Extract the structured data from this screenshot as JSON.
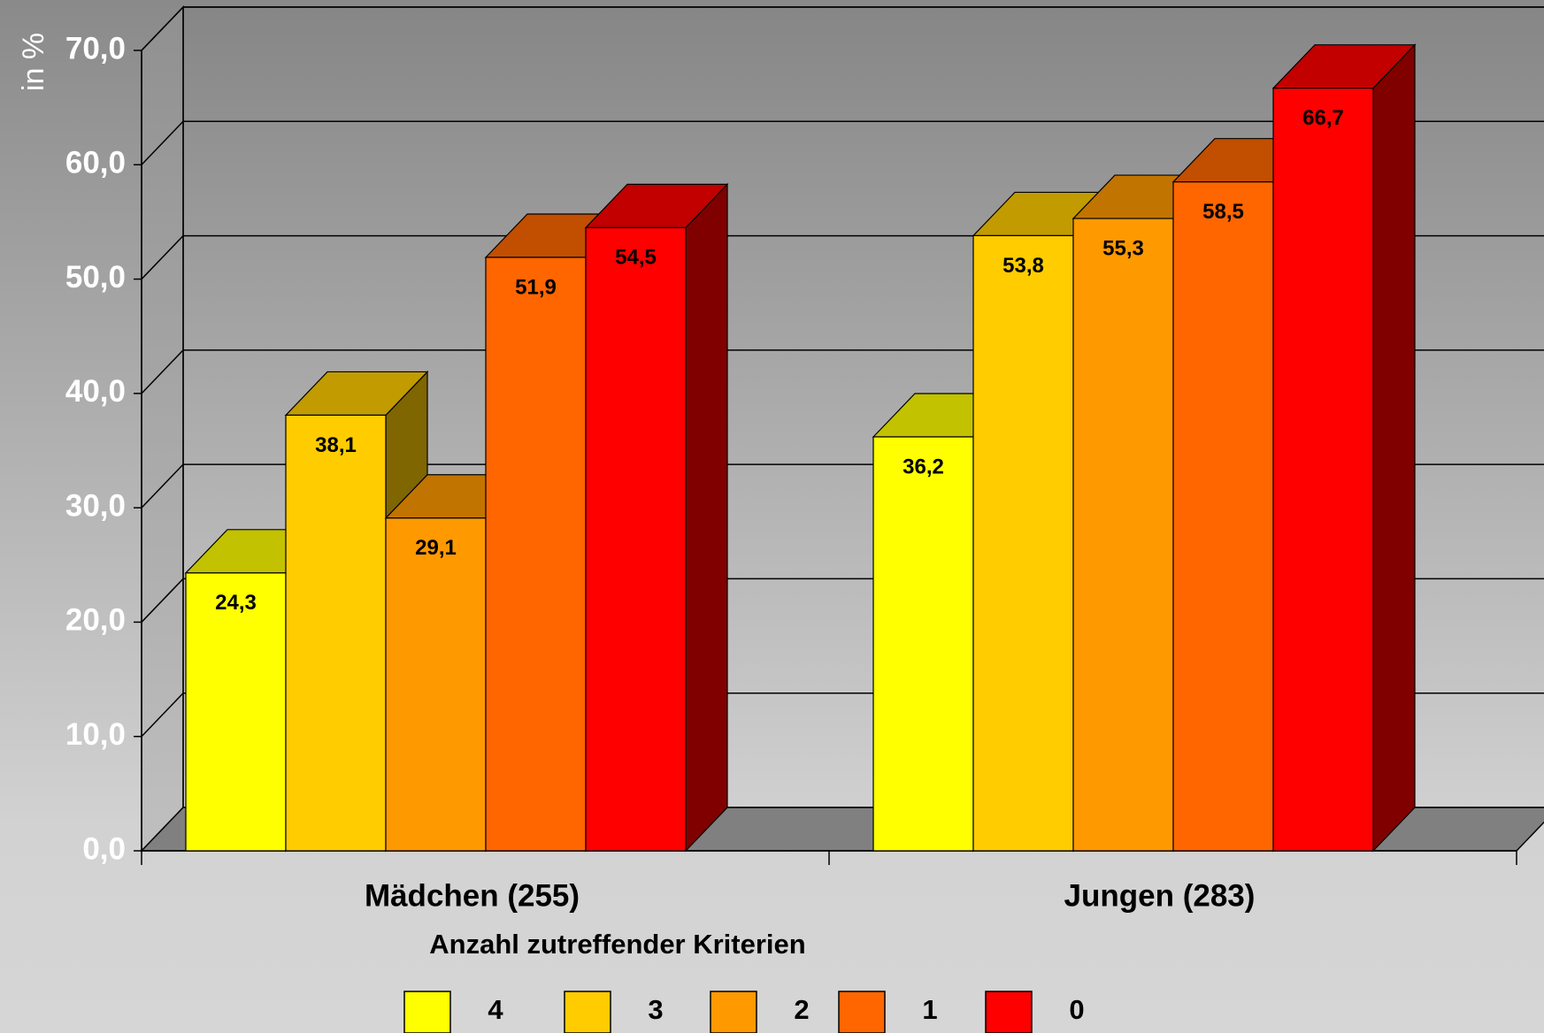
{
  "chart_data": {
    "type": "bar",
    "title": "",
    "ylabel": "in %",
    "xlabel": "",
    "ylim": [
      0,
      70
    ],
    "yticks": [
      "0,0",
      "10,0",
      "20,0",
      "30,0",
      "40,0",
      "50,0",
      "60,0",
      "70,0"
    ],
    "categories": [
      "Mädchen (255)",
      "Jungen (283)"
    ],
    "legend_title": "Anzahl zutreffender Kriterien",
    "legend_position": "bottom",
    "grid": true,
    "three_d": true,
    "series": [
      {
        "name": "4",
        "values": [
          24.3,
          36.2
        ],
        "labels": [
          "24,3",
          "36,2"
        ],
        "color": "#ffff00"
      },
      {
        "name": "3",
        "values": [
          38.1,
          53.8
        ],
        "labels": [
          "38,1",
          "53,8"
        ],
        "color": "#ffcc00"
      },
      {
        "name": "2",
        "values": [
          29.1,
          55.3
        ],
        "labels": [
          "29,1",
          "55,3"
        ],
        "color": "#ff9900"
      },
      {
        "name": "1",
        "values": [
          51.9,
          58.5
        ],
        "labels": [
          "51,9",
          "58,5"
        ],
        "color": "#ff6600"
      },
      {
        "name": "0",
        "values": [
          54.5,
          66.7
        ],
        "labels": [
          "54,5",
          "66,7"
        ],
        "color": "#ff0000"
      }
    ]
  }
}
